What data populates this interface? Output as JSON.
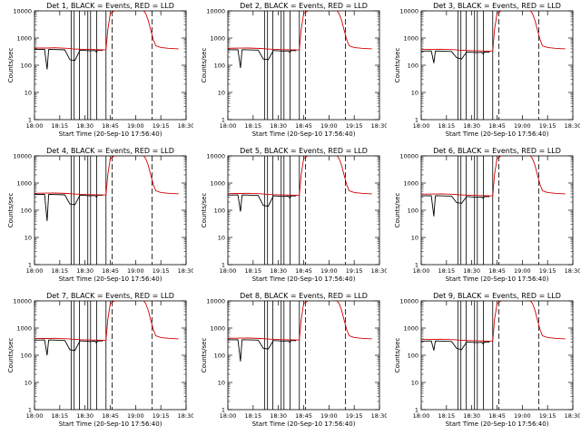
{
  "chart_data": [
    {
      "type": "line",
      "title": "Det 1, BLACK = Events, RED = LLD",
      "xlabel": "Start Time (20-Sep-10 17:56:40)",
      "ylabel": "Counts/sec",
      "xticks": [
        "18:00",
        "18:15",
        "18:30",
        "18:45",
        "19:00",
        "19:15",
        "18:30"
      ],
      "ylog": true,
      "ylim": [
        1,
        10000
      ],
      "yticks": [
        "1",
        "10",
        "100",
        "1000",
        "10000"
      ],
      "series": [
        {
          "color": "#000000",
          "x": [
            0,
            4,
            5,
            5.6,
            6,
            12,
            14,
            16,
            18,
            20,
            22,
            24,
            24.5,
            25,
            27
          ],
          "y": [
            380,
            385,
            70,
            380,
            385,
            370,
            160,
            150,
            360,
            350,
            340,
            350,
            300,
            360,
            355
          ]
        },
        {
          "color": "#d40000",
          "x": [
            0,
            5,
            8,
            13,
            15,
            18,
            22,
            27,
            28.3,
            29,
            30,
            32,
            36,
            40,
            43,
            44,
            45,
            46,
            47,
            48,
            50,
            53,
            57
          ],
          "y": [
            430,
            430,
            440,
            420,
            400,
            390,
            380,
            370,
            375,
            2000,
            8000,
            10500,
            11000,
            11000,
            10500,
            8000,
            4500,
            2000,
            900,
            520,
            450,
            420,
            400
          ]
        }
      ],
      "dropouts": [
        14.5,
        15.7,
        17.8,
        21.1,
        22.2,
        24.6,
        28.3
      ],
      "dashed_lines": [
        30.7,
        46.5
      ]
    },
    {
      "type": "line",
      "title": "Det 2, BLACK = Events, RED = LLD",
      "xlabel": "Start Time (20-Sep-10 17:56:40)",
      "ylabel": "Counts/sec",
      "xticks": [
        "18:00",
        "18:15",
        "18:30",
        "18:45",
        "19:00",
        "19:15",
        "18:30"
      ],
      "ylog": true,
      "ylim": [
        1,
        10000
      ],
      "yticks": [
        "1",
        "10",
        "100",
        "1000",
        "10000"
      ],
      "series": [
        {
          "color": "#000000",
          "x": [
            0,
            4,
            5,
            5.6,
            6,
            12,
            14,
            16,
            18,
            20,
            22,
            24,
            24.5,
            25,
            27
          ],
          "y": [
            370,
            375,
            80,
            370,
            375,
            360,
            170,
            160,
            350,
            340,
            330,
            340,
            290,
            350,
            345
          ]
        },
        {
          "color": "#d40000",
          "x": [
            0,
            5,
            8,
            13,
            15,
            18,
            22,
            27,
            28.3,
            29,
            30,
            32,
            36,
            40,
            43,
            44,
            45,
            46,
            47,
            48,
            50,
            53,
            57
          ],
          "y": [
            420,
            425,
            430,
            415,
            400,
            385,
            375,
            365,
            370,
            2000,
            8000,
            10500,
            11000,
            11000,
            10500,
            8000,
            4500,
            2000,
            900,
            520,
            450,
            420,
            400
          ]
        }
      ],
      "dropouts": [
        14.5,
        15.7,
        17.8,
        21.1,
        22.2,
        24.6,
        28.3
      ],
      "dashed_lines": [
        30.7,
        46.5
      ]
    },
    {
      "type": "line",
      "title": "Det 3, BLACK = Events, RED = LLD",
      "xlabel": "Start Time (20-Sep-10 17:56:40)",
      "ylabel": "Counts/sec",
      "xticks": [
        "18:00",
        "18:15",
        "18:30",
        "18:45",
        "19:00",
        "19:15",
        "18:30"
      ],
      "ylog": true,
      "ylim": [
        1,
        10000
      ],
      "yticks": [
        "1",
        "10",
        "100",
        "1000",
        "10000"
      ],
      "series": [
        {
          "color": "#000000",
          "x": [
            0,
            4,
            5,
            5.6,
            6,
            12,
            14,
            16,
            18,
            20,
            22,
            24,
            24.5,
            25,
            27
          ],
          "y": [
            330,
            335,
            120,
            330,
            335,
            320,
            190,
            170,
            310,
            300,
            290,
            300,
            260,
            310,
            305
          ]
        },
        {
          "color": "#d40000",
          "x": [
            0,
            5,
            8,
            13,
            15,
            18,
            22,
            27,
            28.3,
            29,
            30,
            32,
            36,
            40,
            43,
            44,
            45,
            46,
            47,
            48,
            50,
            53,
            57
          ],
          "y": [
            380,
            385,
            390,
            375,
            360,
            350,
            340,
            330,
            335,
            2000,
            8000,
            10500,
            11000,
            11000,
            10500,
            8000,
            4500,
            2000,
            900,
            520,
            450,
            420,
            400
          ]
        }
      ],
      "dropouts": [
        14.5,
        15.7,
        17.8,
        21.1,
        22.2,
        24.6,
        28.3
      ],
      "dashed_lines": [
        30.7,
        46.5
      ]
    },
    {
      "type": "line",
      "title": "Det 4, BLACK = Events, RED = LLD",
      "xlabel": "Start Time (20-Sep-10 17:56:40)",
      "ylabel": "Counts/sec",
      "xticks": [
        "18:00",
        "18:15",
        "18:30",
        "18:45",
        "19:00",
        "19:15",
        "18:30"
      ],
      "ylog": true,
      "ylim": [
        1,
        10000
      ],
      "yticks": [
        "1",
        "10",
        "100",
        "1000",
        "10000"
      ],
      "series": [
        {
          "color": "#000000",
          "x": [
            0,
            4,
            5,
            5.6,
            6,
            12,
            14,
            16,
            18,
            20,
            22,
            24,
            24.5,
            25,
            27
          ],
          "y": [
            380,
            385,
            40,
            380,
            385,
            370,
            170,
            160,
            360,
            350,
            340,
            350,
            300,
            360,
            355
          ]
        },
        {
          "color": "#d40000",
          "x": [
            0,
            5,
            8,
            13,
            15,
            18,
            22,
            27,
            28.3,
            29,
            30,
            32,
            36,
            40,
            43,
            44,
            45,
            46,
            47,
            48,
            50,
            53,
            57
          ],
          "y": [
            420,
            425,
            430,
            415,
            400,
            385,
            375,
            365,
            370,
            2000,
            8000,
            10500,
            11000,
            11000,
            10500,
            8000,
            4500,
            2000,
            900,
            520,
            450,
            420,
            400
          ]
        }
      ],
      "dropouts": [
        14.5,
        15.7,
        17.8,
        21.1,
        22.2,
        24.6,
        28.3
      ],
      "dashed_lines": [
        30.7,
        46.5
      ]
    },
    {
      "type": "line",
      "title": "Det 5, BLACK = Events, RED = LLD",
      "xlabel": "Start Time (20-Sep-10 17:56:40)",
      "ylabel": "Counts/sec",
      "xticks": [
        "18:00",
        "18:15",
        "18:30",
        "18:45",
        "19:00",
        "19:15",
        "18:30"
      ],
      "ylog": true,
      "ylim": [
        1,
        10000
      ],
      "yticks": [
        "1",
        "10",
        "100",
        "1000",
        "10000"
      ],
      "series": [
        {
          "color": "#000000",
          "x": [
            0,
            4,
            5,
            5.6,
            6,
            12,
            14,
            16,
            18,
            20,
            22,
            24,
            24.5,
            25,
            27
          ],
          "y": [
            360,
            365,
            90,
            360,
            365,
            350,
            150,
            140,
            340,
            330,
            320,
            330,
            280,
            340,
            335
          ]
        },
        {
          "color": "#d40000",
          "x": [
            0,
            5,
            8,
            13,
            15,
            18,
            22,
            27,
            28.3,
            29,
            30,
            32,
            36,
            40,
            43,
            44,
            45,
            46,
            47,
            48,
            50,
            53,
            57
          ],
          "y": [
            410,
            415,
            420,
            405,
            390,
            375,
            365,
            355,
            360,
            2000,
            8000,
            10500,
            11000,
            11000,
            10500,
            8000,
            4500,
            2000,
            900,
            520,
            450,
            420,
            400
          ]
        }
      ],
      "dropouts": [
        14.5,
        15.7,
        17.8,
        21.1,
        22.2,
        24.6,
        28.3
      ],
      "dashed_lines": [
        30.7,
        46.5
      ]
    },
    {
      "type": "line",
      "title": "Det 6, BLACK = Events, RED = LLD",
      "xlabel": "Start Time (20-Sep-10 17:56:40)",
      "ylabel": "Counts/sec",
      "xticks": [
        "18:00",
        "18:15",
        "18:30",
        "18:45",
        "19:00",
        "19:15",
        "18:30"
      ],
      "ylog": true,
      "ylim": [
        1,
        10000
      ],
      "yticks": [
        "1",
        "10",
        "100",
        "1000",
        "10000"
      ],
      "series": [
        {
          "color": "#000000",
          "x": [
            0,
            4,
            5,
            5.6,
            6,
            12,
            14,
            16,
            18,
            20,
            22,
            24,
            24.5,
            25,
            27
          ],
          "y": [
            340,
            345,
            60,
            340,
            345,
            330,
            190,
            180,
            320,
            310,
            300,
            310,
            270,
            320,
            315
          ]
        },
        {
          "color": "#d40000",
          "x": [
            0,
            5,
            8,
            13,
            15,
            18,
            22,
            27,
            28.3,
            29,
            30,
            32,
            36,
            40,
            43,
            44,
            45,
            46,
            47,
            48,
            50,
            53,
            57
          ],
          "y": [
            390,
            395,
            400,
            385,
            370,
            360,
            350,
            340,
            345,
            2000,
            8000,
            10500,
            11000,
            11000,
            10500,
            8000,
            4500,
            2000,
            900,
            520,
            450,
            420,
            400
          ]
        }
      ],
      "dropouts": [
        14.5,
        15.7,
        17.8,
        21.1,
        22.2,
        24.6,
        28.3
      ],
      "dashed_lines": [
        30.7,
        46.5
      ]
    },
    {
      "type": "line",
      "title": "Det 7, BLACK = Events, RED = LLD",
      "xlabel": "Start Time (20-Sep-10 17:56:40)",
      "ylabel": "Counts/sec",
      "xticks": [
        "18:00",
        "18:15",
        "18:30",
        "18:45",
        "19:00",
        "19:15",
        "18:30"
      ],
      "ylog": true,
      "ylim": [
        1,
        10000
      ],
      "yticks": [
        "1",
        "10",
        "100",
        "1000",
        "10000"
      ],
      "series": [
        {
          "color": "#000000",
          "x": [
            0,
            4,
            5,
            5.6,
            6,
            12,
            14,
            16,
            18,
            20,
            22,
            24,
            24.5,
            25,
            27
          ],
          "y": [
            360,
            365,
            100,
            360,
            365,
            350,
            160,
            150,
            340,
            330,
            320,
            330,
            280,
            340,
            335
          ]
        },
        {
          "color": "#d40000",
          "x": [
            0,
            5,
            8,
            13,
            15,
            18,
            22,
            27,
            28.3,
            29,
            30,
            32,
            36,
            40,
            43,
            44,
            45,
            46,
            47,
            48,
            50,
            53,
            57
          ],
          "y": [
            410,
            415,
            420,
            405,
            390,
            375,
            365,
            355,
            360,
            2000,
            8000,
            10500,
            11000,
            11000,
            10500,
            8000,
            4500,
            2000,
            900,
            520,
            450,
            420,
            400
          ]
        }
      ],
      "dropouts": [
        14.5,
        15.7,
        17.8,
        21.1,
        22.2,
        24.6,
        28.3
      ],
      "dashed_lines": [
        30.7,
        46.5
      ]
    },
    {
      "type": "line",
      "title": "Det 8, BLACK = Events, RED = LLD",
      "xlabel": "Start Time (20-Sep-10 17:56:40)",
      "ylabel": "Counts/sec",
      "xticks": [
        "18:00",
        "18:15",
        "18:30",
        "18:45",
        "19:00",
        "19:15",
        "18:30"
      ],
      "ylog": true,
      "ylim": [
        1,
        10000
      ],
      "yticks": [
        "1",
        "10",
        "100",
        "1000",
        "10000"
      ],
      "series": [
        {
          "color": "#000000",
          "x": [
            0,
            4,
            5,
            5.6,
            6,
            12,
            14,
            16,
            18,
            20,
            22,
            24,
            24.5,
            25,
            27
          ],
          "y": [
            370,
            375,
            60,
            370,
            375,
            360,
            180,
            170,
            350,
            340,
            330,
            340,
            290,
            350,
            345
          ]
        },
        {
          "color": "#d40000",
          "x": [
            0,
            5,
            8,
            13,
            15,
            18,
            22,
            27,
            28.3,
            29,
            30,
            32,
            36,
            40,
            43,
            44,
            45,
            46,
            47,
            48,
            50,
            53,
            57
          ],
          "y": [
            420,
            425,
            430,
            415,
            400,
            385,
            375,
            365,
            370,
            2000,
            8000,
            10500,
            11000,
            11000,
            10500,
            8000,
            4500,
            2000,
            900,
            520,
            450,
            420,
            400
          ]
        }
      ],
      "dropouts": [
        14.5,
        15.7,
        17.8,
        21.1,
        22.2,
        24.6,
        28.3
      ],
      "dashed_lines": [
        30.7,
        46.5
      ]
    },
    {
      "type": "line",
      "title": "Det 9, BLACK = Events, RED = LLD",
      "xlabel": "Start Time (20-Sep-10 17:56:40)",
      "ylabel": "Counts/sec",
      "xticks": [
        "18:00",
        "18:15",
        "18:30",
        "18:45",
        "19:00",
        "19:15",
        "18:30"
      ],
      "ylog": true,
      "ylim": [
        1,
        10000
      ],
      "yticks": [
        "1",
        "10",
        "100",
        "1000",
        "10000"
      ],
      "series": [
        {
          "color": "#000000",
          "x": [
            0,
            4,
            5,
            5.6,
            6,
            12,
            14,
            16,
            18,
            20,
            22,
            24,
            24.5,
            25,
            27
          ],
          "y": [
            330,
            335,
            150,
            330,
            335,
            320,
            180,
            160,
            310,
            300,
            290,
            300,
            260,
            310,
            305
          ]
        },
        {
          "color": "#d40000",
          "x": [
            0,
            5,
            8,
            13,
            15,
            18,
            22,
            27,
            28.3,
            29,
            30,
            32,
            36,
            40,
            43,
            44,
            45,
            46,
            47,
            48,
            50,
            53,
            57
          ],
          "y": [
            380,
            385,
            390,
            375,
            360,
            350,
            340,
            330,
            335,
            2000,
            8000,
            10500,
            11000,
            11000,
            10500,
            8000,
            4500,
            2000,
            900,
            520,
            450,
            420,
            400
          ]
        }
      ],
      "dropouts": [
        14.5,
        15.7,
        17.8,
        21.1,
        22.2,
        24.6,
        28.3
      ],
      "dashed_lines": [
        30.7,
        46.5
      ]
    }
  ]
}
